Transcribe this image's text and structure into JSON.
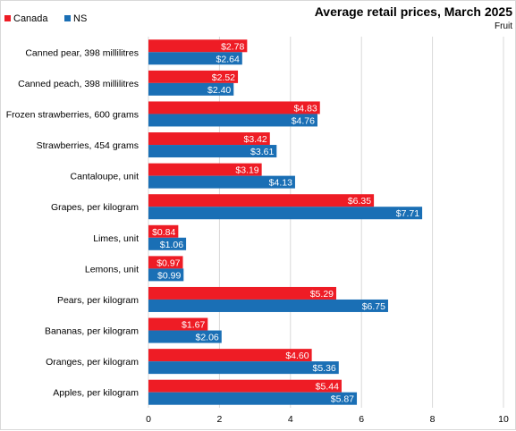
{
  "chart_data": {
    "type": "bar",
    "orientation": "horizontal",
    "title": "Average retail prices, March 2025",
    "subtitle": "Fruit",
    "categories": [
      "Canned pear, 398 millilitres",
      "Canned peach, 398 millilitres",
      "Frozen strawberries, 600 grams",
      "Strawberries, 454 grams",
      "Cantaloupe, unit",
      "Grapes, per kilogram",
      "Limes, unit",
      "Lemons, unit",
      "Pears, per kilogram",
      "Bananas, per kilogram",
      "Oranges, per kilogram",
      "Apples, per kilogram"
    ],
    "series": [
      {
        "name": "Canada",
        "color": "#ee1c25",
        "values": [
          2.78,
          2.52,
          4.83,
          3.42,
          3.19,
          6.35,
          0.84,
          0.97,
          5.29,
          1.67,
          4.6,
          5.44
        ],
        "labels": [
          "$2.78",
          "$2.52",
          "$4.83",
          "$3.42",
          "$3.19",
          "$6.35",
          "$0.84",
          "$0.97",
          "$5.29",
          "$1.67",
          "$4.60",
          "$5.44"
        ]
      },
      {
        "name": "NS",
        "color": "#1a6fb5",
        "values": [
          2.64,
          2.4,
          4.76,
          3.61,
          4.13,
          7.71,
          1.06,
          0.99,
          6.75,
          2.06,
          5.36,
          5.87
        ],
        "labels": [
          "$2.64",
          "$2.40",
          "$4.76",
          "$3.61",
          "$4.13",
          "$7.71",
          "$1.06",
          "$0.99",
          "$6.75",
          "$2.06",
          "$5.36",
          "$5.87"
        ]
      }
    ],
    "xlim": [
      0,
      10
    ],
    "xticks": [
      "0",
      "2",
      "4",
      "6",
      "8",
      "10"
    ],
    "xtick_values": [
      0,
      2,
      4,
      6,
      8,
      10
    ],
    "grid": "vertical",
    "legend": "top-left"
  }
}
